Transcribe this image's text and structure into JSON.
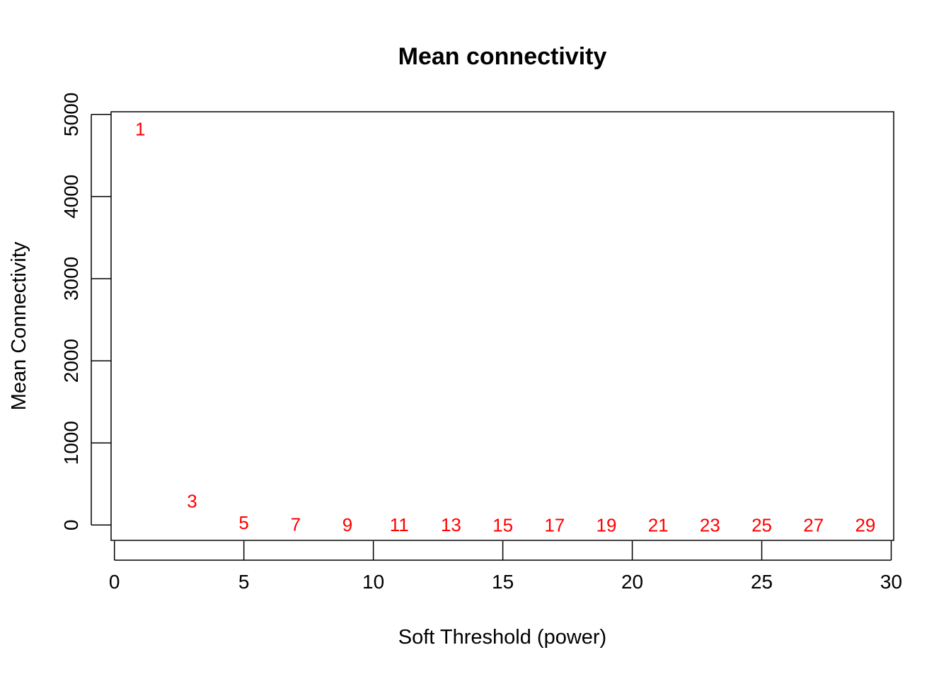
{
  "chart_data": {
    "type": "scatter",
    "title": "Mean connectivity",
    "xlabel": "Soft Threshold (power)",
    "ylabel": "Mean Connectivity",
    "xlim": [
      0,
      30
    ],
    "ylim": [
      0,
      5000
    ],
    "x_ticks": [
      0,
      5,
      10,
      15,
      20,
      25,
      30
    ],
    "y_ticks": [
      0,
      1000,
      2000,
      3000,
      4000,
      5000
    ],
    "grid": false,
    "legend": "none",
    "marker": "text-label",
    "label_color": "#ff0000",
    "series": [
      {
        "points": [
          {
            "x": 1,
            "y": 4820,
            "label": "1"
          },
          {
            "x": 3,
            "y": 290,
            "label": "3"
          },
          {
            "x": 5,
            "y": 30,
            "label": "5"
          },
          {
            "x": 7,
            "y": 5,
            "label": "7"
          },
          {
            "x": 9,
            "y": 2,
            "label": "9"
          },
          {
            "x": 11,
            "y": 1,
            "label": "11"
          },
          {
            "x": 13,
            "y": 0.5,
            "label": "13"
          },
          {
            "x": 15,
            "y": 0.3,
            "label": "15"
          },
          {
            "x": 17,
            "y": 0.2,
            "label": "17"
          },
          {
            "x": 19,
            "y": 0.1,
            "label": "19"
          },
          {
            "x": 21,
            "y": 0.1,
            "label": "21"
          },
          {
            "x": 23,
            "y": 0.05,
            "label": "23"
          },
          {
            "x": 25,
            "y": 0.05,
            "label": "25"
          },
          {
            "x": 27,
            "y": 0.03,
            "label": "27"
          },
          {
            "x": 29,
            "y": 0.02,
            "label": "29"
          }
        ]
      }
    ]
  }
}
